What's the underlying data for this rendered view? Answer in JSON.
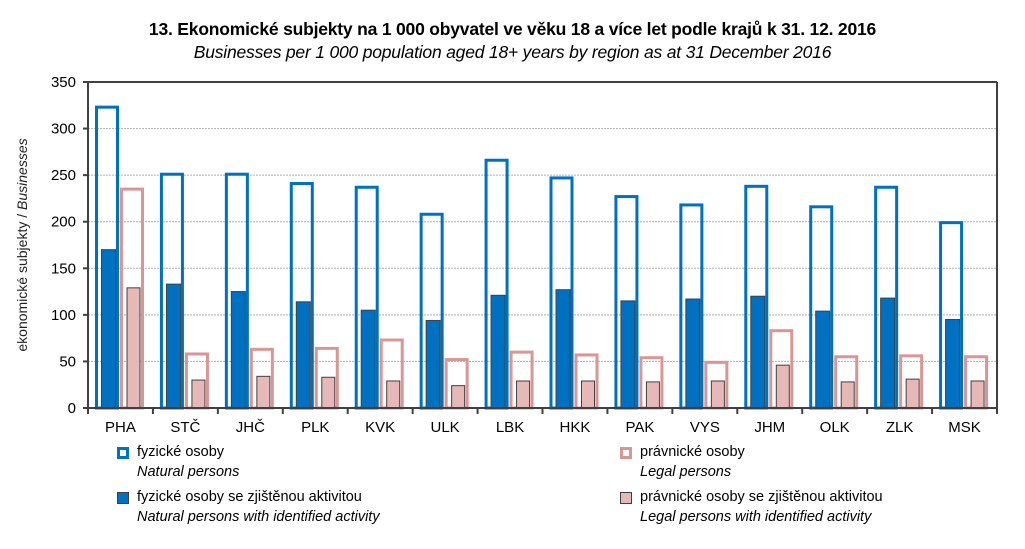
{
  "chart_data": {
    "type": "bar",
    "title": "13. Ekonomické subjekty na 1 000 obyvatel ve věku 18 a více let podle krajů k 31. 12. 2016",
    "subtitle": "Businesses per 1 000 population aged 18+ years by region as at 31 December 2016",
    "xlabel": "",
    "ylabel": "ekonomické subjekty",
    "ylabel_en": "Businesses",
    "ylabel_sep": " / ",
    "ylim": [
      0,
      350
    ],
    "yticks": [
      0,
      50,
      100,
      150,
      200,
      250,
      300,
      350
    ],
    "grid": true,
    "legend_position": "bottom",
    "categories": [
      "PHA",
      "STČ",
      "JHČ",
      "PLK",
      "KVK",
      "ULK",
      "LBK",
      "HKK",
      "PAK",
      "VYS",
      "JHM",
      "OLK",
      "ZLK",
      "MSK"
    ],
    "series": [
      {
        "name": "fyzické osoby",
        "name_en": "Natural persons",
        "style": "outline",
        "color": "#0070C0",
        "values": [
          323,
          251,
          251,
          241,
          237,
          208,
          266,
          247,
          227,
          218,
          238,
          216,
          237,
          199
        ]
      },
      {
        "name": "fyzické osoby se zjištěnou aktivitou",
        "name_en": "Natural persons with identified activity",
        "style": "filled",
        "color": "#0070C0",
        "values": [
          170,
          133,
          125,
          114,
          105,
          94,
          121,
          127,
          115,
          117,
          120,
          104,
          118,
          95
        ]
      },
      {
        "name": "právnické osoby",
        "name_en": "Legal persons",
        "style": "outline",
        "color": "#D99694",
        "values": [
          235,
          58,
          63,
          64,
          73,
          52,
          60,
          57,
          54,
          49,
          83,
          55,
          56,
          55
        ]
      },
      {
        "name": "právnické osoby se zjištěnou aktivitou",
        "name_en": "Legal persons with identified activity",
        "style": "filled",
        "color": "#E6B9B8",
        "values": [
          129,
          30,
          34,
          33,
          29,
          24,
          29,
          29,
          28,
          29,
          46,
          28,
          31,
          29
        ]
      }
    ]
  }
}
